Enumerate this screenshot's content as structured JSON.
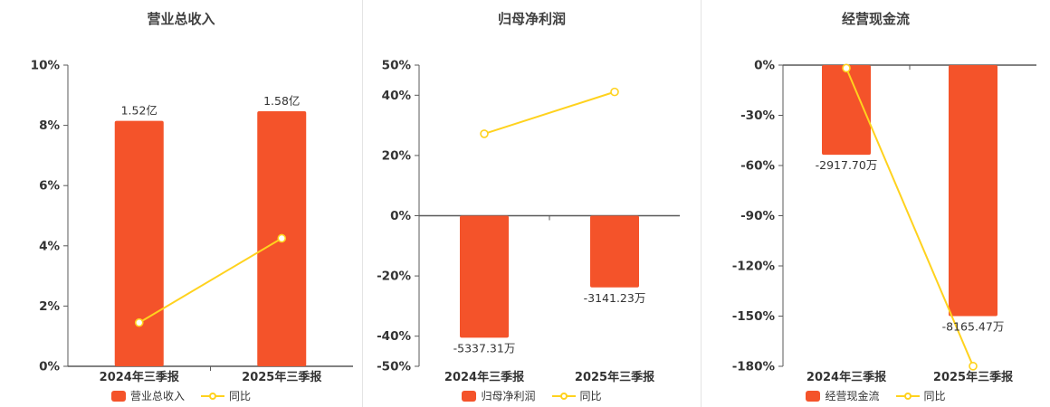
{
  "colors": {
    "bar": "#f4532a",
    "line": "#ffd21e",
    "marker_fill": "#ffffff",
    "axis": "#595959",
    "text": "#333333",
    "title": "#404040",
    "separator": "#e4e4e4",
    "background": "#ffffff"
  },
  "chart_data": [
    {
      "type": "bar",
      "title": "营业总收入",
      "categories": [
        "2024年三季报",
        "2025年三季报"
      ],
      "bar_series": {
        "name": "营业总收入",
        "unit_labels": [
          "1.52亿",
          "1.58亿"
        ],
        "values_pct": [
          8.15,
          8.47
        ]
      },
      "line_series": {
        "name": "同比",
        "values_pct": [
          1.45,
          4.25
        ]
      },
      "ylim": [
        0,
        10
      ],
      "yticks": [
        0,
        2,
        4,
        6,
        8,
        10
      ],
      "ytick_labels": [
        "0%",
        "2%",
        "4%",
        "6%",
        "8%",
        "10%"
      ],
      "legend": [
        "营业总收入",
        "同比"
      ],
      "legend_position": "bottom",
      "grid": false
    },
    {
      "type": "bar",
      "title": "归母净利润",
      "categories": [
        "2024年三季报",
        "2025年三季报"
      ],
      "bar_series": {
        "name": "归母净利润",
        "unit_labels": [
          "-5337.31万",
          "-3141.23万"
        ],
        "values_pct": [
          -40.5,
          -23.8
        ]
      },
      "line_series": {
        "name": "同比",
        "values_pct": [
          27.2,
          41.1
        ]
      },
      "ylim": [
        -50,
        50
      ],
      "yticks": [
        -50,
        -40,
        -20,
        0,
        20,
        40,
        50
      ],
      "ytick_labels": [
        "-50%",
        "-40%",
        "-20%",
        "0%",
        "20%",
        "40%",
        "50%"
      ],
      "legend": [
        "归母净利润",
        "同比"
      ],
      "legend_position": "bottom",
      "grid": false
    },
    {
      "type": "bar",
      "title": "经营现金流",
      "categories": [
        "2024年三季报",
        "2025年三季报"
      ],
      "bar_series": {
        "name": "经营现金流",
        "unit_labels": [
          "-2917.70万",
          "-8165.47万"
        ],
        "values_pct": [
          -53.6,
          -150.0
        ]
      },
      "line_series": {
        "name": "同比",
        "values_pct": [
          -1.8,
          -179.9
        ]
      },
      "ylim": [
        -180,
        0
      ],
      "yticks": [
        -180,
        -150,
        -120,
        -90,
        -60,
        -30,
        0
      ],
      "ytick_labels": [
        "-180%",
        "-150%",
        "-120%",
        "-90%",
        "-60%",
        "-30%",
        "0%"
      ],
      "legend": [
        "经营现金流",
        "同比"
      ],
      "legend_position": "bottom",
      "grid": false
    }
  ]
}
